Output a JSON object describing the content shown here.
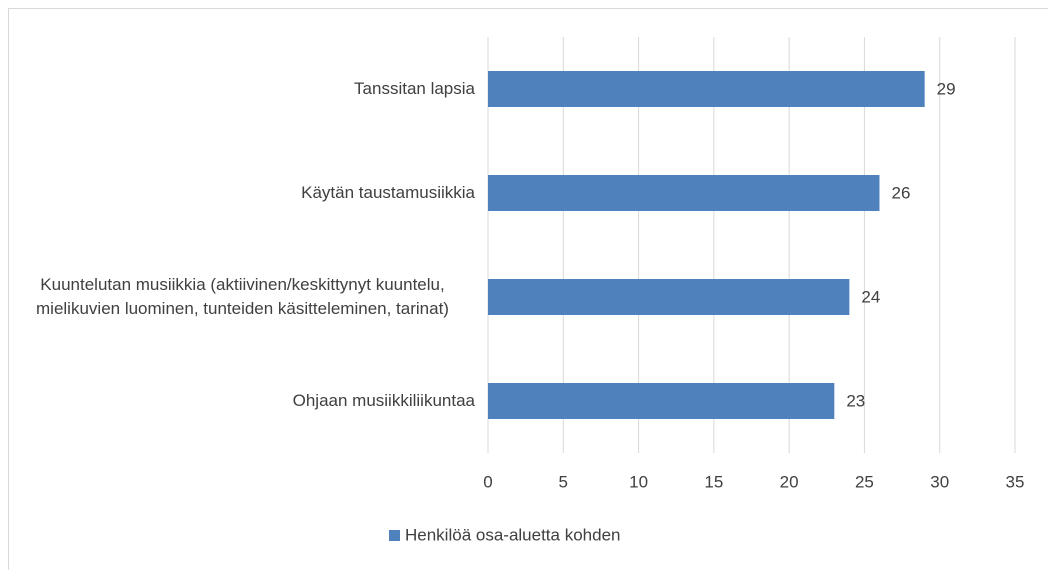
{
  "chart_data": {
    "type": "barh",
    "categories": [
      "Tanssitan lapsia",
      "Käytän taustamusiikkia",
      "Kuuntelutan musiikkia (aktiivinen/keskittynyt kuuntelu, mielikuvien luominen, tunteiden käsitteleminen, tarinat)",
      "Ohjaan musiikkiliikuntaa"
    ],
    "series": [
      {
        "name": "Henkilöä osa-aluetta kohden",
        "color": "#4f81bd",
        "values": [
          29,
          26,
          24,
          23
        ]
      }
    ],
    "xlim": [
      0,
      35
    ],
    "xticks": [
      0,
      5,
      10,
      15,
      20,
      25,
      30,
      35
    ],
    "grid": true,
    "legend": "bottom"
  }
}
